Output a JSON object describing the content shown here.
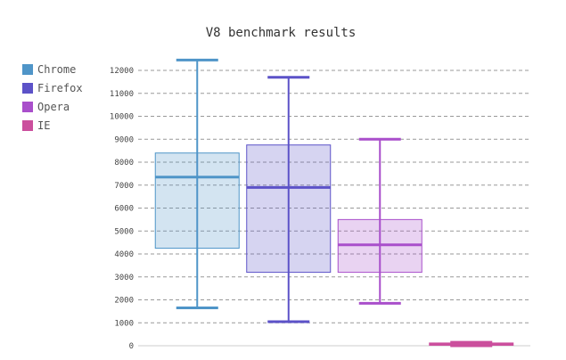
{
  "chart_data": {
    "type": "box",
    "title": "V8 benchmark results",
    "xlabel": "",
    "ylabel": "",
    "ylim": [
      0,
      12000
    ],
    "yticks": [
      0,
      1000,
      2000,
      3000,
      4000,
      5000,
      6000,
      7000,
      8000,
      9000,
      10000,
      11000,
      12000
    ],
    "grid": true,
    "legend_position": "left",
    "series": [
      {
        "name": "Chrome",
        "color": "#4f95c8",
        "min": 1650,
        "q1": 4250,
        "median": 7350,
        "q3": 8400,
        "max": 12450
      },
      {
        "name": "Firefox",
        "color": "#5c52c8",
        "min": 1050,
        "q1": 3200,
        "median": 6900,
        "q3": 8750,
        "max": 11700
      },
      {
        "name": "Opera",
        "color": "#a94fcb",
        "min": 1850,
        "q1": 3200,
        "median": 4400,
        "q3": 5500,
        "max": 9000
      },
      {
        "name": "IE",
        "color": "#cb4f9d",
        "min": 0,
        "q1": 20,
        "median": 80,
        "q3": 120,
        "max": 150
      }
    ]
  }
}
